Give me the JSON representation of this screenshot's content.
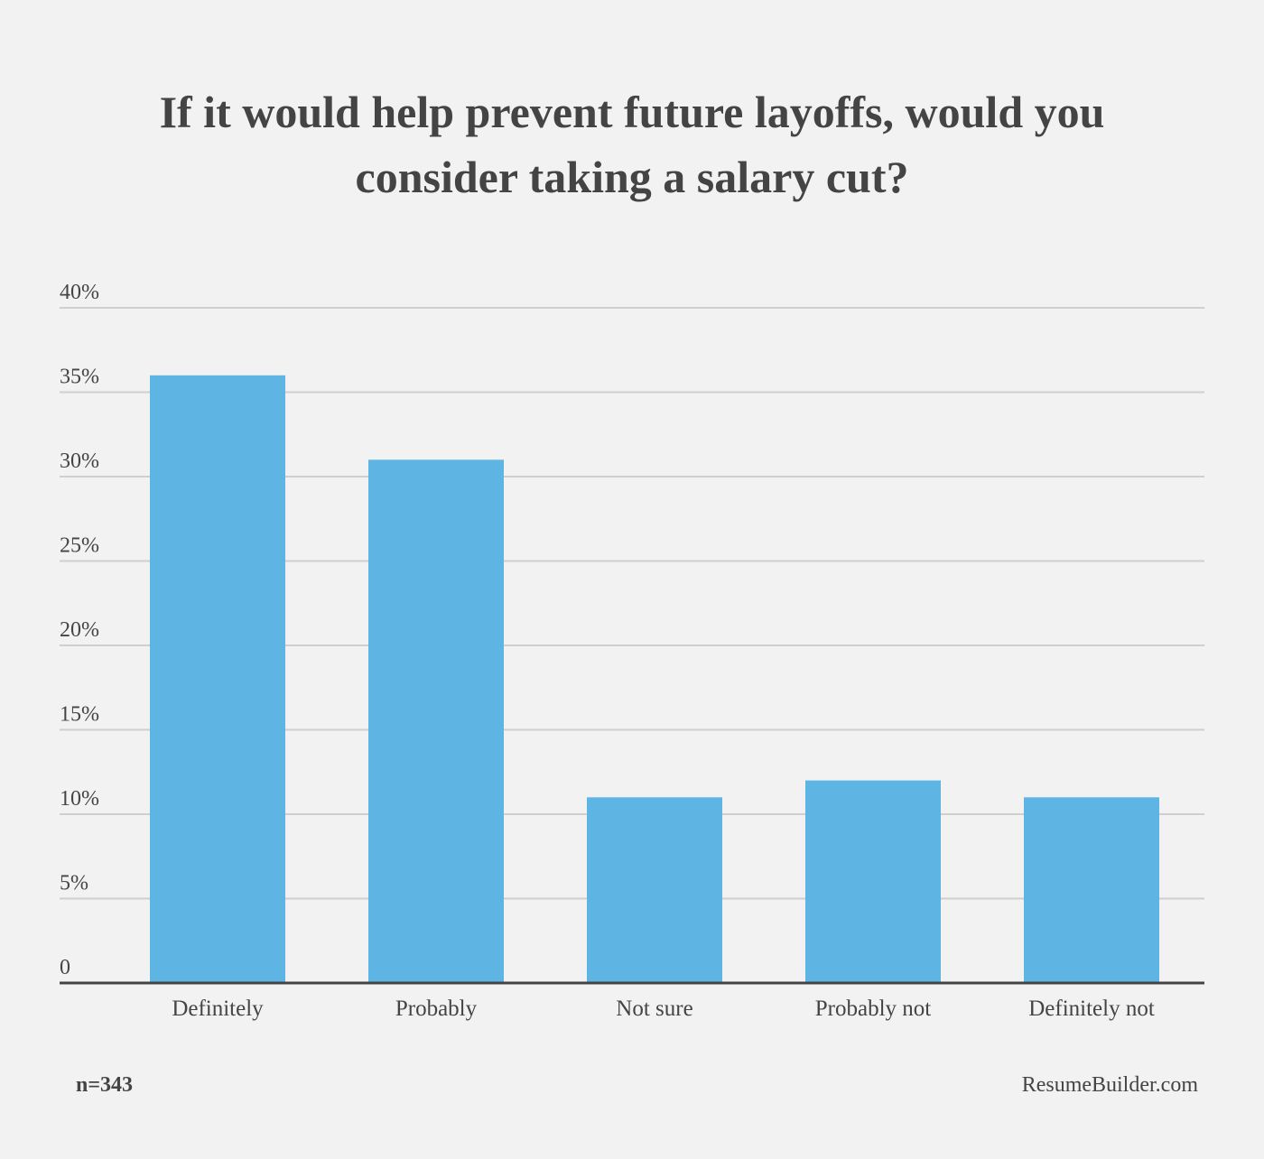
{
  "chart_data": {
    "type": "bar",
    "title": "If it would help prevent future layoffs, would you consider taking a salary cut?",
    "categories": [
      "Definitely",
      "Probably",
      "Not sure",
      "Probably not",
      "Definitely not"
    ],
    "values": [
      36,
      31,
      11,
      12,
      11
    ],
    "color": "#5eb5e3",
    "ylim": [
      0,
      40
    ],
    "yticks": [
      0,
      {
        "value": 5,
        "label": "5%"
      },
      {
        "value": 10,
        "label": "10%"
      },
      {
        "value": 15,
        "label": "15%"
      },
      {
        "value": 20,
        "label": "20%"
      },
      {
        "value": 25,
        "label": "25%"
      },
      {
        "value": 30,
        "label": "30%"
      },
      {
        "value": 35,
        "label": "35%"
      },
      {
        "value": 40,
        "label": "40%"
      }
    ],
    "grid": true,
    "sample_note": "n=343",
    "source": "ResumeBuilder.com"
  }
}
